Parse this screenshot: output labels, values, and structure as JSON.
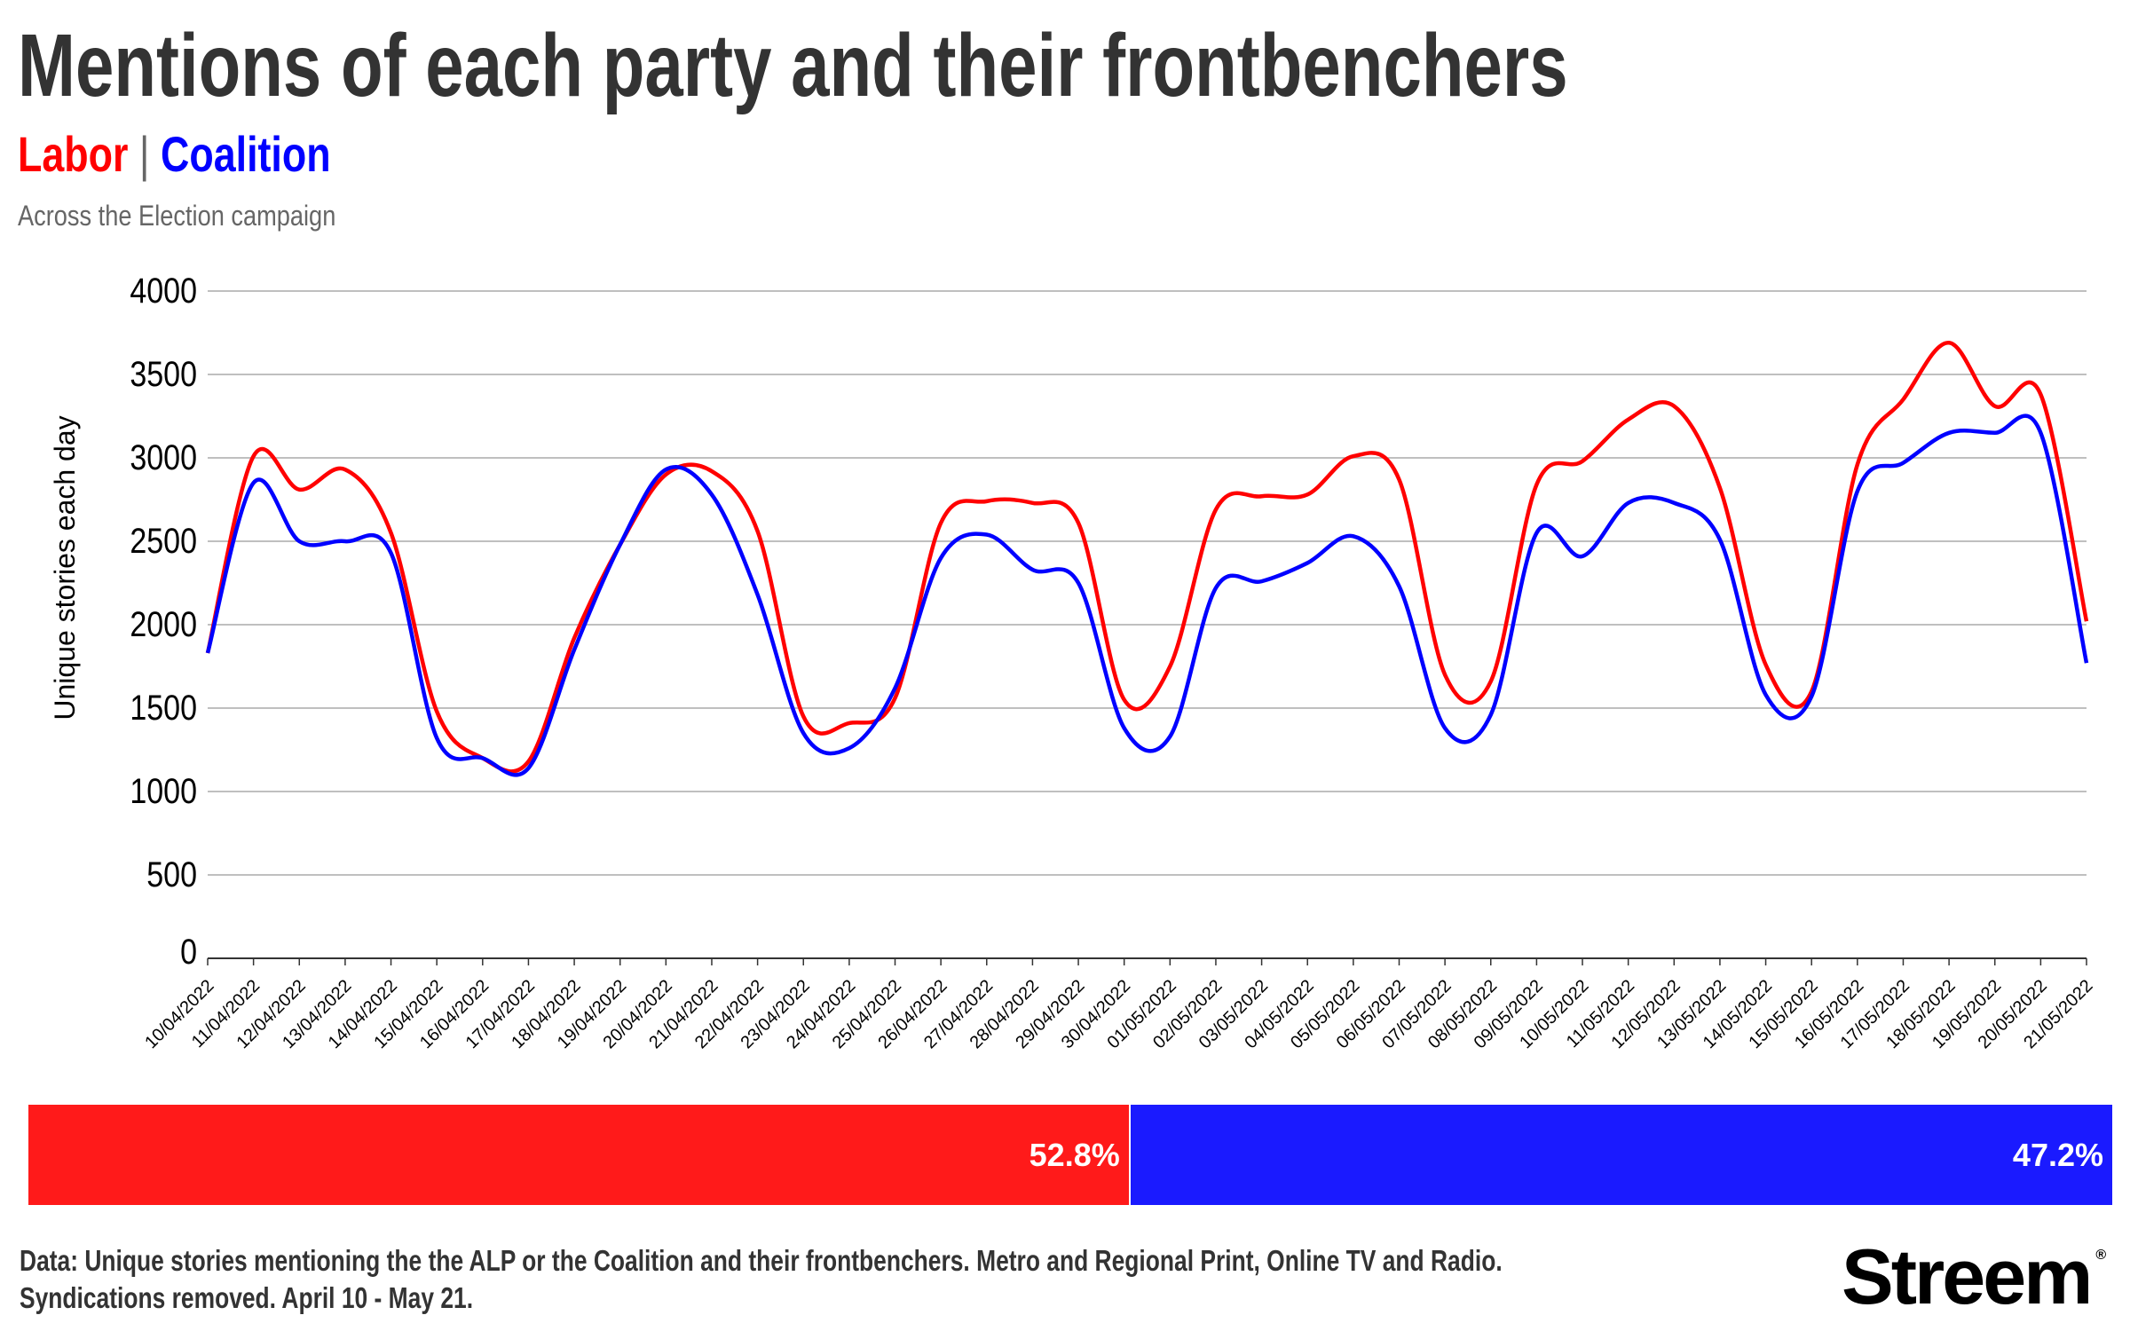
{
  "header": {
    "title": "Mentions of each party and their frontbenchers",
    "legend_labor": "Labor",
    "legend_sep": "|",
    "legend_coalition": "Coalition",
    "subtitle": "Across the Election campaign"
  },
  "colors": {
    "labor": "#ff0000",
    "coalition": "#0000ff",
    "labor_bar": "#ff1a1a",
    "coalition_bar": "#1a1aff"
  },
  "chart_data": {
    "type": "line",
    "title": "Mentions of each party and their frontbenchers",
    "ylabel": "Unique stories each day",
    "xlabel": "",
    "ylim": [
      0,
      4000
    ],
    "yticks": [
      "0",
      "500",
      "1000",
      "1500",
      "2000",
      "2500",
      "3000",
      "3500",
      "4000"
    ],
    "grid": true,
    "x": [
      "10/04/2022",
      "11/04/2022",
      "12/04/2022",
      "13/04/2022",
      "14/04/2022",
      "15/04/2022",
      "16/04/2022",
      "17/04/2022",
      "18/04/2022",
      "19/04/2022",
      "20/04/2022",
      "21/04/2022",
      "22/04/2022",
      "23/04/2022",
      "24/04/2022",
      "25/04/2022",
      "26/04/2022",
      "27/04/2022",
      "28/04/2022",
      "29/04/2022",
      "30/04/2022",
      "01/05/2022",
      "02/05/2022",
      "03/05/2022",
      "04/05/2022",
      "05/05/2022",
      "06/05/2022",
      "07/05/2022",
      "08/05/2022",
      "09/05/2022",
      "10/05/2022",
      "11/05/2022",
      "12/05/2022",
      "13/05/2022",
      "14/05/2022",
      "15/05/2022",
      "16/05/2022",
      "17/05/2022",
      "18/05/2022",
      "19/05/2022",
      "20/05/2022",
      "21/05/2022"
    ],
    "series": [
      {
        "name": "Labor",
        "values": [
          1830,
          3010,
          2810,
          2930,
          2550,
          1480,
          1200,
          1180,
          1920,
          2480,
          2900,
          2920,
          2560,
          1450,
          1410,
          1560,
          2610,
          2740,
          2730,
          2610,
          1550,
          1750,
          2690,
          2770,
          2780,
          3010,
          2870,
          1700,
          1660,
          2840,
          2980,
          3230,
          3310,
          2820,
          1760,
          1600,
          2960,
          3350,
          3690,
          3310,
          3380,
          2020
        ]
      },
      {
        "name": "Coalition",
        "values": [
          1830,
          2850,
          2500,
          2500,
          2430,
          1320,
          1200,
          1140,
          1850,
          2480,
          2930,
          2780,
          2180,
          1350,
          1260,
          1620,
          2400,
          2540,
          2330,
          2250,
          1380,
          1330,
          2220,
          2260,
          2370,
          2530,
          2230,
          1380,
          1460,
          2550,
          2410,
          2730,
          2730,
          2510,
          1580,
          1570,
          2800,
          2970,
          3150,
          3150,
          3150,
          1770
        ]
      }
    ]
  },
  "share": {
    "labor_pct": 52.8,
    "labor_label": "52.8%",
    "coalition_pct": 47.2,
    "coalition_label": "47.2%"
  },
  "footer": {
    "line1": "Data: Unique stories mentioning the the ALP or the Coalition and their frontbenchers. Metro and Regional Print, Online TV and Radio.",
    "line2": "Syndications removed. April 10 - May 21.",
    "logo": "Streem",
    "logo_mark": "®"
  }
}
